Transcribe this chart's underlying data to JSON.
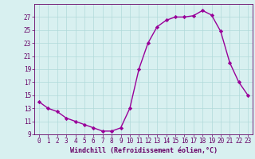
{
  "x": [
    0,
    1,
    2,
    3,
    4,
    5,
    6,
    7,
    8,
    9,
    10,
    11,
    12,
    13,
    14,
    15,
    16,
    17,
    18,
    19,
    20,
    21,
    22,
    23
  ],
  "y": [
    14.0,
    13.0,
    12.5,
    11.5,
    11.0,
    10.5,
    10.0,
    9.5,
    9.5,
    10.0,
    13.0,
    19.0,
    23.0,
    25.5,
    26.5,
    27.0,
    27.0,
    27.2,
    28.0,
    27.3,
    24.8,
    20.0,
    17.0,
    15.0
  ],
  "line_color": "#990099",
  "marker": "D",
  "markersize": 2.2,
  "linewidth": 1.0,
  "bg_color": "#d8f0f0",
  "grid_color": "#b0dada",
  "xlabel": "Windchill (Refroidissement éolien,°C)",
  "xlabel_color": "#660066",
  "xlabel_fontsize": 6.0,
  "tick_color": "#660066",
  "tick_fontsize": 5.5,
  "ylim": [
    9,
    29
  ],
  "xlim": [
    -0.5,
    23.5
  ],
  "yticks": [
    9,
    11,
    13,
    15,
    17,
    19,
    21,
    23,
    25,
    27
  ],
  "xticks": [
    0,
    1,
    2,
    3,
    4,
    5,
    6,
    7,
    8,
    9,
    10,
    11,
    12,
    13,
    14,
    15,
    16,
    17,
    18,
    19,
    20,
    21,
    22,
    23
  ]
}
